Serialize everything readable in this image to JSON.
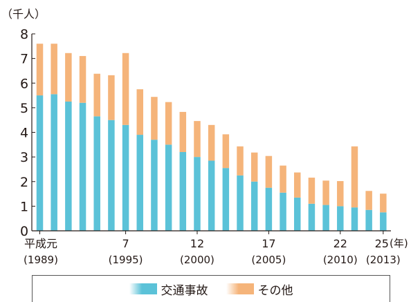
{
  "chart_data": {
    "type": "bar",
    "stacked": true,
    "unit_label": "（千人）",
    "x_unit_label": "(年)",
    "ylim": [
      0,
      8
    ],
    "yticks": [
      0,
      1,
      2,
      3,
      4,
      5,
      6,
      7,
      8
    ],
    "grid": false,
    "legend_position": "bottom",
    "categories": [
      "1989",
      "1990",
      "1991",
      "1992",
      "1993",
      "1994",
      "1995",
      "1996",
      "1997",
      "1998",
      "1999",
      "2000",
      "2001",
      "2002",
      "2003",
      "2004",
      "2005",
      "2006",
      "2007",
      "2008",
      "2009",
      "2010",
      "2011",
      "2012",
      "2013"
    ],
    "x_tick_labels": [
      {
        "index": 0,
        "line1": "平成元",
        "line2": "(1989)"
      },
      {
        "index": 6,
        "line1": "7",
        "line2": "(1995)"
      },
      {
        "index": 11,
        "line1": "12",
        "line2": "(2000)"
      },
      {
        "index": 16,
        "line1": "17",
        "line2": "(2005)"
      },
      {
        "index": 21,
        "line1": "22",
        "line2": "(2010)"
      },
      {
        "index": 24,
        "line1": "25",
        "line2": "(2013)"
      }
    ],
    "series": [
      {
        "name": "交通事故",
        "color": "#5bc2d8",
        "values": [
          5.5,
          5.55,
          5.25,
          5.2,
          4.65,
          4.5,
          4.3,
          3.9,
          3.7,
          3.5,
          3.2,
          3.0,
          2.85,
          2.55,
          2.25,
          2.0,
          1.75,
          1.55,
          1.35,
          1.1,
          1.05,
          1.0,
          0.95,
          0.85,
          0.75
        ]
      },
      {
        "name": "その他",
        "color": "#f5b47a",
        "values": [
          2.1,
          2.05,
          1.97,
          1.9,
          1.73,
          1.82,
          2.92,
          1.85,
          1.74,
          1.73,
          1.63,
          1.46,
          1.45,
          1.37,
          1.18,
          1.18,
          1.29,
          1.1,
          1.02,
          1.06,
          0.99,
          1.02,
          2.48,
          0.77,
          0.76
        ]
      }
    ]
  }
}
